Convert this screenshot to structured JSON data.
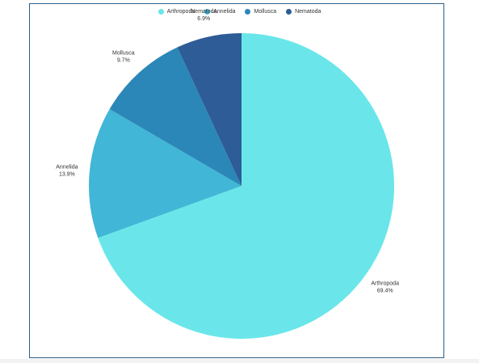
{
  "chart_data": {
    "type": "pie",
    "title": "",
    "legend_position": "top",
    "slices": [
      {
        "name": "Arthropoda",
        "value": 69.4,
        "label": "69.4%",
        "color": "#6ae6ea"
      },
      {
        "name": "Annelida",
        "value": 13.9,
        "label": "13.9%",
        "color": "#41b6d6"
      },
      {
        "name": "Mollusca",
        "value": 9.7,
        "label": "9.7%",
        "color": "#2b87b8"
      },
      {
        "name": "Nematoda",
        "value": 6.9,
        "label": "6.9%",
        "color": "#2d5c96"
      }
    ]
  }
}
